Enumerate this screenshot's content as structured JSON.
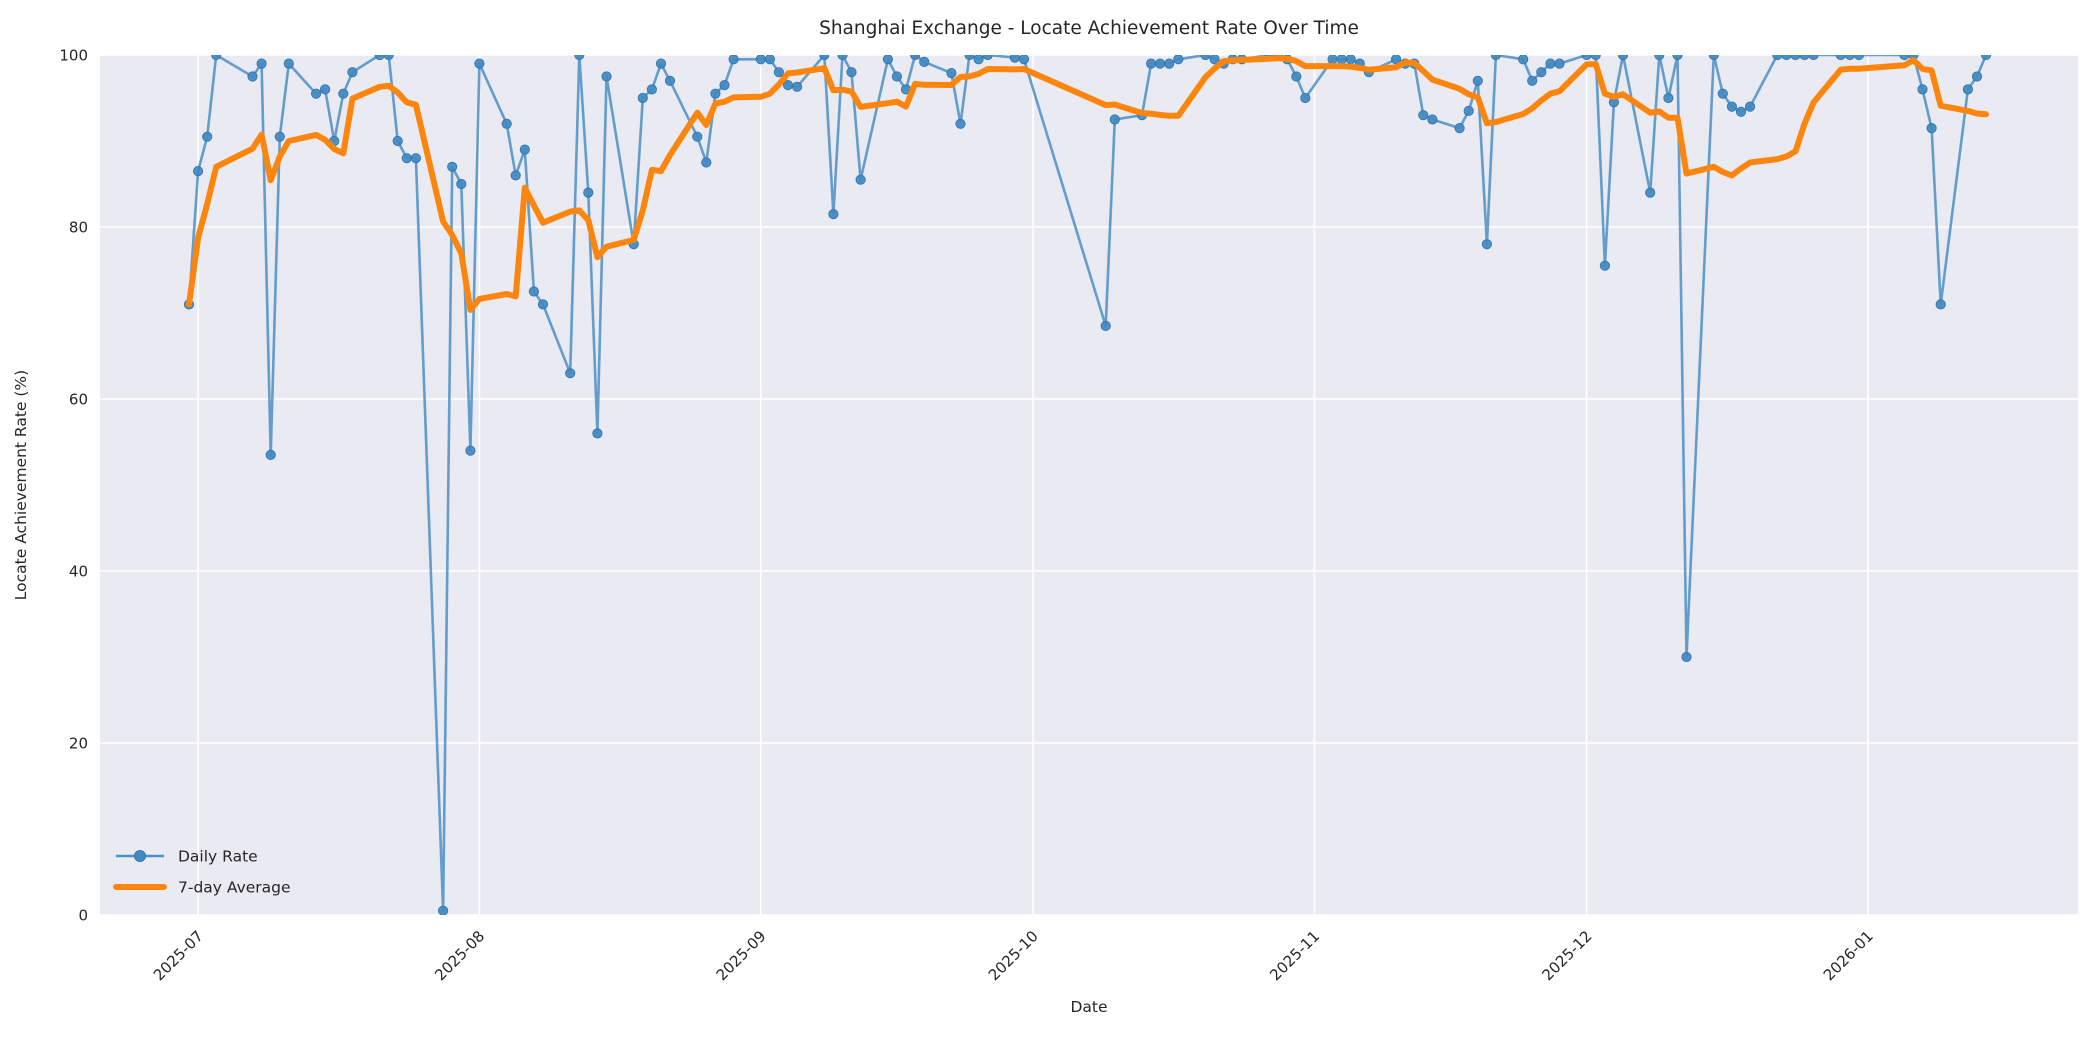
{
  "figure": {
    "title": "Shanghai Exchange - Locate Achievement Rate Over Time",
    "xlabel": "Date",
    "ylabel": "Locate Achievement Rate (%)"
  },
  "legend": {
    "position": "lower left",
    "items": [
      {
        "label": "Daily Rate",
        "swatch": "line-with-marker"
      },
      {
        "label": "7-day Average",
        "swatch": "thick-line"
      }
    ]
  },
  "axes": {
    "y_ticks": [
      0,
      20,
      40,
      60,
      80,
      100
    ],
    "x_ticks": [
      "2025-07",
      "2025-08",
      "2025-09",
      "2025-10",
      "2025-11",
      "2025-12",
      "2026-01"
    ],
    "x_tick_rotation_deg": 45,
    "ylim": [
      0,
      100
    ],
    "grid": true
  },
  "colors": {
    "plot_background": "#EAEAF2",
    "figure_background": "#FFFFFF",
    "gridline": "#FFFFFF",
    "daily_line": "#4B8FC4",
    "daily_marker": "#4189C2",
    "daily_marker_edge": "#3679AE",
    "avg_line": "#FC860D",
    "text": "#262626"
  },
  "chart_data": {
    "type": "line",
    "title": "Shanghai Exchange - Locate Achievement Rate Over Time",
    "xlabel": "Date",
    "ylabel": "Locate Achievement Rate (%)",
    "ylim": [
      0,
      100
    ],
    "grid": true,
    "legend_position": "lower left",
    "x": [
      "2025-06-30",
      "2025-07-01",
      "2025-07-02",
      "2025-07-03",
      "2025-07-07",
      "2025-07-08",
      "2025-07-09",
      "2025-07-10",
      "2025-07-11",
      "2025-07-14",
      "2025-07-15",
      "2025-07-16",
      "2025-07-17",
      "2025-07-18",
      "2025-07-21",
      "2025-07-22",
      "2025-07-23",
      "2025-07-24",
      "2025-07-25",
      "2025-07-28",
      "2025-07-29",
      "2025-07-30",
      "2025-07-31",
      "2025-08-01",
      "2025-08-04",
      "2025-08-05",
      "2025-08-06",
      "2025-08-07",
      "2025-08-08",
      "2025-08-11",
      "2025-08-12",
      "2025-08-13",
      "2025-08-14",
      "2025-08-15",
      "2025-08-18",
      "2025-08-19",
      "2025-08-20",
      "2025-08-21",
      "2025-08-22",
      "2025-08-25",
      "2025-08-26",
      "2025-08-27",
      "2025-08-28",
      "2025-08-29",
      "2025-09-01",
      "2025-09-02",
      "2025-09-03",
      "2025-09-04",
      "2025-09-05",
      "2025-09-08",
      "2025-09-09",
      "2025-09-10",
      "2025-09-11",
      "2025-09-12",
      "2025-09-15",
      "2025-09-16",
      "2025-09-17",
      "2025-09-18",
      "2025-09-19",
      "2025-09-22",
      "2025-09-23",
      "2025-09-24",
      "2025-09-25",
      "2025-09-26",
      "2025-09-29",
      "2025-09-30",
      "2025-10-09",
      "2025-10-10",
      "2025-10-13",
      "2025-10-14",
      "2025-10-15",
      "2025-10-16",
      "2025-10-17",
      "2025-10-20",
      "2025-10-21",
      "2025-10-22",
      "2025-10-23",
      "2025-10-24",
      "2025-10-27",
      "2025-10-28",
      "2025-10-29",
      "2025-10-30",
      "2025-10-31",
      "2025-11-03",
      "2025-11-04",
      "2025-11-05",
      "2025-11-06",
      "2025-11-07",
      "2025-11-10",
      "2025-11-11",
      "2025-11-12",
      "2025-11-13",
      "2025-11-14",
      "2025-11-17",
      "2025-11-18",
      "2025-11-19",
      "2025-11-20",
      "2025-11-21",
      "2025-11-24",
      "2025-11-25",
      "2025-11-26",
      "2025-11-27",
      "2025-11-28",
      "2025-12-01",
      "2025-12-02",
      "2025-12-03",
      "2025-12-04",
      "2025-12-05",
      "2025-12-08",
      "2025-12-09",
      "2025-12-10",
      "2025-12-11",
      "2025-12-12",
      "2025-12-15",
      "2025-12-16",
      "2025-12-17",
      "2025-12-18",
      "2025-12-19",
      "2025-12-22",
      "2025-12-23",
      "2025-12-24",
      "2025-12-25",
      "2025-12-26",
      "2025-12-29",
      "2025-12-30",
      "2025-12-31",
      "2026-01-05",
      "2026-01-06",
      "2026-01-07",
      "2026-01-08",
      "2026-01-09",
      "2026-01-12",
      "2026-01-13",
      "2026-01-14"
    ],
    "series": [
      {
        "name": "Daily Rate",
        "values": [
          71,
          86.5,
          90.5,
          100,
          97.5,
          99,
          53.5,
          90.5,
          99,
          95.5,
          96,
          90,
          95.5,
          98,
          100,
          100,
          90,
          88,
          88,
          0.5,
          87,
          85,
          54,
          99,
          92,
          86,
          89,
          72.5,
          71,
          63,
          100,
          84,
          56,
          97.5,
          78,
          95,
          96,
          99,
          97,
          90.5,
          87.5,
          95.5,
          96.5,
          99.5,
          99.5,
          99.5,
          98,
          96.5,
          96.3,
          100,
          81.5,
          100,
          98,
          85.5,
          99.5,
          97.5,
          96,
          100,
          99.2,
          97.9,
          92,
          100,
          99.5,
          100,
          99.7,
          99.5,
          68.5,
          92.5,
          93,
          99,
          99,
          99,
          99.5,
          100,
          99.5,
          99,
          99.5,
          99.5,
          100,
          100,
          99.5,
          97.5,
          95,
          99.5,
          99.5,
          99.5,
          99,
          98,
          99.5,
          99,
          99,
          93,
          92.5,
          91.5,
          93.5,
          97,
          78,
          100,
          99.5,
          97,
          98,
          99,
          99,
          100,
          100,
          75.5,
          94.5,
          100,
          84,
          100,
          95,
          100,
          30,
          100,
          95.5,
          94,
          93.4,
          94,
          100,
          100,
          100,
          100,
          100,
          100,
          100,
          100,
          100,
          100,
          96,
          91.5,
          71,
          96,
          97.5,
          100
        ]
      },
      {
        "name": "7-day Average",
        "values": [
          71,
          78.75,
          82.67,
          87,
          89.1,
          90.75,
          85.43,
          88.21,
          90,
          90.71,
          90.14,
          89.07,
          88.57,
          94.93,
          96.29,
          96.43,
          95.64,
          94.5,
          94.21,
          80.64,
          79.07,
          76.93,
          70.36,
          71.64,
          72.21,
          71.93,
          84.57,
          82.5,
          80.5,
          81.79,
          81.93,
          80.79,
          76.5,
          77.71,
          78.5,
          81.93,
          86.64,
          86.5,
          88.36,
          93.29,
          91.86,
          94.36,
          94.57,
          95.07,
          95.14,
          95.5,
          96.57,
          97.86,
          97.97,
          98.47,
          95.9,
          95.97,
          95.76,
          93.97,
          94.4,
          94.57,
          94,
          96.64,
          96.53,
          96.51,
          97.44,
          97.51,
          97.8,
          98.37,
          98.33,
          98.37,
          94.17,
          94.24,
          93.24,
          93.17,
          93.03,
          92.93,
          92.93,
          97.43,
          98.43,
          99.29,
          99.36,
          99.43,
          99.57,
          99.64,
          99.57,
          99.29,
          98.71,
          98.71,
          98.71,
          98.64,
          98.5,
          98.29,
          98.57,
          99.14,
          99.07,
          98.14,
          97.14,
          96.07,
          95.43,
          95.07,
          92.07,
          92.21,
          93.14,
          93.79,
          94.71,
          95.5,
          95.79,
          98.93,
          98.93,
          95.5,
          95.14,
          95.43,
          93.29,
          93.43,
          92.71,
          92.71,
          86.21,
          87,
          86.4,
          86,
          86.8,
          87.5,
          87.9,
          88.2,
          88.8,
          92,
          94.5,
          98.3,
          98.4,
          98.4,
          98.8,
          99.4,
          98.4,
          98.2,
          94.1,
          93.5,
          93.2,
          93.1
        ]
      }
    ]
  }
}
